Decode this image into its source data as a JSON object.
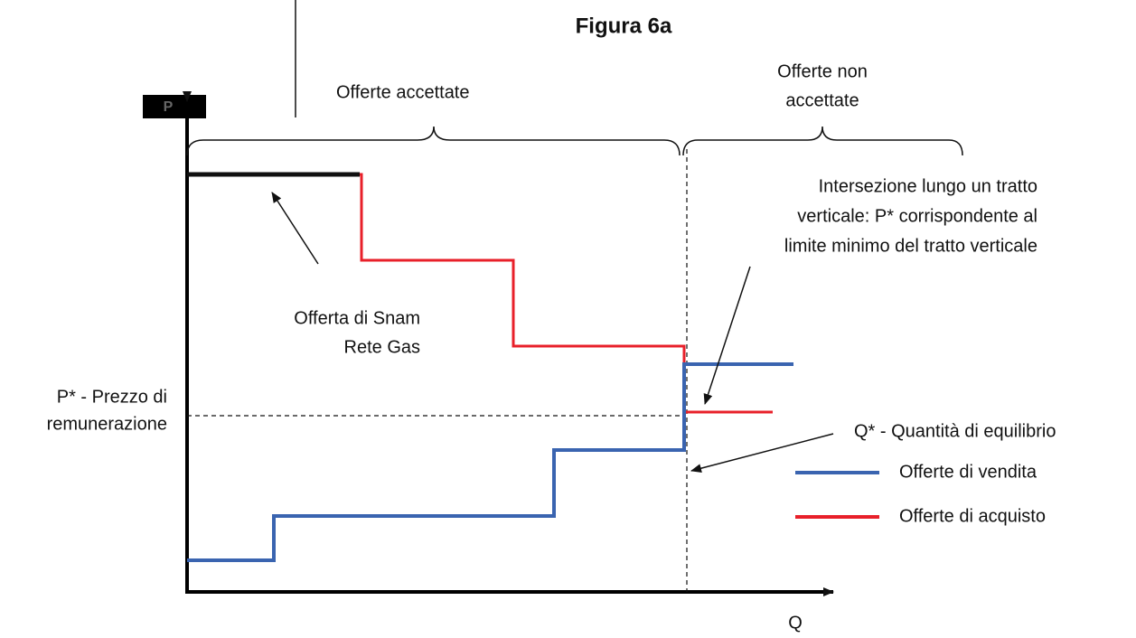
{
  "title": "Figura 6a",
  "y_axis_label": "P",
  "x_axis_label": "Q",
  "regions": {
    "accepted": "Offerte accettate",
    "not_accepted": [
      "Offerte non",
      "accettate"
    ]
  },
  "annotations": {
    "intersection": [
      "Intersezione lungo un tratto",
      "verticale: P* corrispondente al",
      "limite minimo del tratto verticale"
    ],
    "snam": [
      "Offerta di Snam",
      "Rete Gas"
    ],
    "price": [
      "P* - Prezzo di",
      "remunerazione"
    ],
    "quantity": "Q* - Quantità di equilibrio"
  },
  "legend": [
    {
      "name": "Offerte di vendita",
      "color": "#3a64b0"
    },
    {
      "name": "Offerte di acquisto",
      "color": "#e8202a"
    }
  ]
}
